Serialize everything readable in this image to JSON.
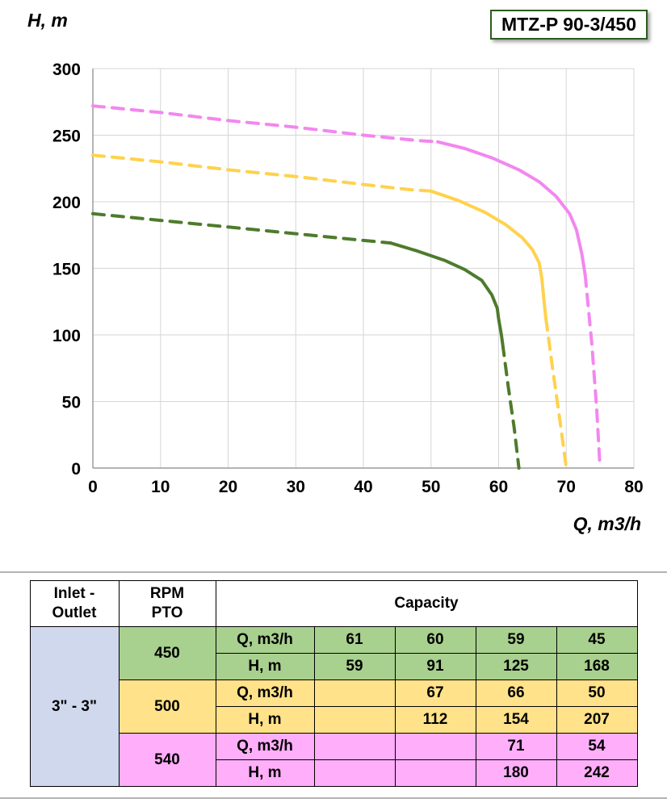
{
  "model_label": "MTZ-P 90-3/450",
  "chart_data": {
    "type": "line",
    "title": "MTZ-P 90-3/450",
    "xlabel": "Q, m3/h",
    "ylabel": "H, m",
    "xlim": [
      0,
      80
    ],
    "ylim": [
      0,
      300
    ],
    "xticks": [
      0,
      10,
      20,
      30,
      40,
      50,
      60,
      70,
      80
    ],
    "yticks": [
      0,
      50,
      100,
      150,
      200,
      250,
      300
    ],
    "grid": true,
    "legend": "none",
    "series": [
      {
        "name": "450 RPM PTO",
        "color": "#4e7b2c",
        "segments": [
          {
            "style": "dashed",
            "points": [
              [
                0,
                191
              ],
              [
                10,
                186
              ],
              [
                20,
                181
              ],
              [
                30,
                176
              ],
              [
                40,
                171
              ],
              [
                44,
                169
              ]
            ]
          },
          {
            "style": "solid",
            "points": [
              [
                44,
                169
              ],
              [
                48,
                163
              ],
              [
                52,
                156
              ],
              [
                55,
                149
              ],
              [
                57.5,
                141
              ],
              [
                59,
                130
              ],
              [
                59.8,
                120
              ],
              [
                60,
                112
              ],
              [
                60.4,
                100
              ],
              [
                60.6,
                93
              ]
            ]
          },
          {
            "style": "dashed",
            "points": [
              [
                60.6,
                93
              ],
              [
                61.4,
                62
              ],
              [
                62.3,
                30
              ],
              [
                63,
                0
              ]
            ]
          }
        ]
      },
      {
        "name": "500 RPM PTO",
        "color": "#ffd24d",
        "segments": [
          {
            "style": "dashed",
            "points": [
              [
                0,
                235
              ],
              [
                10,
                230
              ],
              [
                20,
                224
              ],
              [
                30,
                219
              ],
              [
                40,
                213
              ],
              [
                47,
                209
              ],
              [
                50,
                208
              ]
            ]
          },
          {
            "style": "solid",
            "points": [
              [
                50,
                208
              ],
              [
                54,
                201
              ],
              [
                58,
                192
              ],
              [
                61,
                183
              ],
              [
                63.5,
                173
              ],
              [
                65,
                164
              ],
              [
                66,
                154
              ],
              [
                66.4,
                142
              ],
              [
                66.7,
                126
              ],
              [
                67,
                112
              ]
            ]
          },
          {
            "style": "dashed",
            "points": [
              [
                67,
                112
              ],
              [
                68,
                74
              ],
              [
                69,
                38
              ],
              [
                70,
                0
              ]
            ]
          }
        ]
      },
      {
        "name": "540 RPM PTO",
        "color": "#f287ef",
        "segments": [
          {
            "style": "dashed",
            "points": [
              [
                0,
                272
              ],
              [
                10,
                267
              ],
              [
                20,
                261
              ],
              [
                30,
                256
              ],
              [
                40,
                250
              ],
              [
                48,
                246
              ],
              [
                51,
                245
              ]
            ]
          },
          {
            "style": "solid",
            "points": [
              [
                51,
                245
              ],
              [
                55,
                240
              ],
              [
                59,
                233
              ],
              [
                63,
                224
              ],
              [
                66,
                215
              ],
              [
                68.5,
                204
              ],
              [
                70.5,
                191
              ],
              [
                71.5,
                179
              ],
              [
                72.3,
                161
              ],
              [
                72.8,
                145
              ]
            ]
          },
          {
            "style": "dashed",
            "points": [
              [
                72.8,
                145
              ],
              [
                73.8,
                92
              ],
              [
                74.5,
                45
              ],
              [
                75,
                0
              ]
            ]
          }
        ]
      }
    ]
  },
  "table": {
    "header": {
      "inlet_outlet": "Inlet -\nOutlet",
      "rpm_pto": "RPM\nPTO",
      "capacity": "Capacity"
    },
    "inlet_outlet_value": "3\" - 3\"",
    "groups": [
      {
        "rpm": "450",
        "color": "#a8d08e",
        "rows": [
          {
            "label": "Q, m3/h",
            "values": [
              "61",
              "60",
              "59",
              "45"
            ]
          },
          {
            "label": "H, m",
            "values": [
              "59",
              "91",
              "125",
              "168"
            ]
          }
        ]
      },
      {
        "rpm": "500",
        "color": "#ffe289",
        "rows": [
          {
            "label": "Q, m3/h",
            "values": [
              "",
              "67",
              "66",
              "50"
            ]
          },
          {
            "label": "H, m",
            "values": [
              "",
              "112",
              "154",
              "207"
            ]
          }
        ]
      },
      {
        "rpm": "540",
        "color": "#ffaefa",
        "rows": [
          {
            "label": "Q, m3/h",
            "values": [
              "",
              "",
              "71",
              "54"
            ]
          },
          {
            "label": "H, m",
            "values": [
              "",
              "",
              "180",
              "242"
            ]
          }
        ]
      }
    ]
  }
}
